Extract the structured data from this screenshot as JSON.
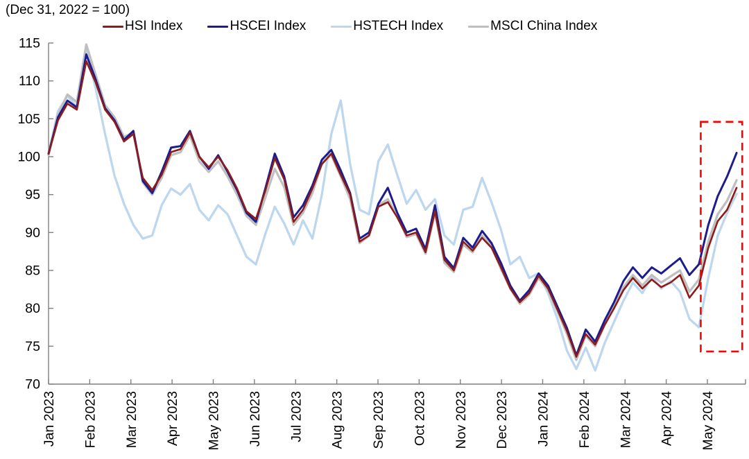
{
  "title": "(Dec 31, 2022 = 100)",
  "chart_data": {
    "type": "line",
    "title": "(Dec 31, 2022 = 100)",
    "xlabel": "",
    "ylabel": "",
    "x_unit": "weekly points from Jan 2023 to late May 2024",
    "x_tick_labels": [
      "Jan 2023",
      "Feb 2023",
      "Mar 2023",
      "Apr 2023",
      "May 2023",
      "Jun 2023",
      "Jul 2023",
      "Aug 2023",
      "Sep 2023",
      "Oct 2023",
      "Nov 2023",
      "Dec 2023",
      "Jan 2024",
      "Feb 2024",
      "Mar 2024",
      "Apr 2024",
      "May 2024"
    ],
    "ylim": [
      70,
      115
    ],
    "y_ticks": [
      70,
      75,
      80,
      85,
      90,
      95,
      100,
      105,
      110,
      115
    ],
    "grid": false,
    "legend_position": "top",
    "axis_color": "#7F7F7F",
    "text_color": "#000000",
    "series": [
      {
        "name": "HSI Index",
        "color": "#8E1B1B",
        "line_width": 2.6,
        "values": [
          100.4,
          104.8,
          107.0,
          106.2,
          112.6,
          109.8,
          106.2,
          104.6,
          102.0,
          103.0,
          97.2,
          95.6,
          97.6,
          100.6,
          101.0,
          103.2,
          100.0,
          98.6,
          100.0,
          98.2,
          95.8,
          92.8,
          91.8,
          95.5,
          99.8,
          97.0,
          91.4,
          93.0,
          95.8,
          99.0,
          100.4,
          97.6,
          95.0,
          88.8,
          89.6,
          93.4,
          94.0,
          92.0,
          89.6,
          90.0,
          87.4,
          92.8,
          86.4,
          85.0,
          88.8,
          87.6,
          89.3,
          88.0,
          85.4,
          82.6,
          80.8,
          82.0,
          84.3,
          82.6,
          79.8,
          77.0,
          73.6,
          76.6,
          75.2,
          77.8,
          80.0,
          82.4,
          84.0,
          82.6,
          83.8,
          82.8,
          83.4,
          84.4,
          81.4,
          83.0,
          88.0,
          91.5,
          93.0,
          95.9
        ]
      },
      {
        "name": "HSCEI Index",
        "color": "#1C1C8C",
        "line_width": 3.0,
        "values": [
          100.4,
          105.2,
          107.4,
          106.5,
          113.5,
          110.2,
          106.4,
          104.8,
          102.2,
          103.4,
          96.8,
          95.2,
          98.0,
          101.2,
          101.4,
          103.4,
          100.0,
          98.4,
          100.2,
          98.0,
          95.6,
          92.6,
          91.4,
          95.8,
          100.4,
          97.4,
          92.0,
          93.6,
          96.2,
          99.6,
          100.9,
          98.2,
          95.2,
          89.2,
          90.0,
          93.8,
          95.9,
          92.6,
          90.0,
          90.5,
          87.8,
          93.6,
          86.8,
          85.3,
          89.3,
          88.0,
          90.2,
          88.6,
          86.0,
          83.0,
          81.0,
          82.4,
          84.6,
          83.0,
          80.2,
          77.4,
          73.8,
          77.2,
          75.6,
          78.4,
          80.8,
          83.6,
          85.4,
          84.0,
          85.4,
          84.6,
          85.6,
          86.6,
          84.4,
          85.8,
          91.0,
          94.8,
          97.4,
          100.5
        ]
      },
      {
        "name": "HSTECH Index",
        "color": "#BDD7EE",
        "line_width": 3.3,
        "values": [
          100.4,
          106.0,
          108.0,
          106.6,
          114.0,
          109.0,
          103.0,
          97.5,
          93.8,
          91.0,
          89.2,
          89.6,
          93.6,
          95.8,
          95.0,
          96.4,
          93.0,
          91.6,
          93.6,
          92.4,
          89.6,
          86.8,
          85.8,
          89.8,
          93.4,
          91.2,
          88.4,
          91.6,
          89.2,
          95.0,
          103.0,
          107.4,
          99.0,
          93.0,
          92.4,
          99.4,
          101.6,
          97.6,
          93.8,
          95.6,
          93.0,
          94.4,
          89.6,
          88.4,
          93.0,
          93.4,
          97.2,
          94.0,
          90.4,
          85.8,
          86.8,
          84.0,
          84.6,
          82.0,
          78.6,
          74.4,
          72.0,
          74.8,
          71.8,
          75.4,
          78.2,
          81.0,
          83.4,
          82.0,
          84.2,
          82.6,
          83.6,
          82.2,
          78.6,
          77.5,
          84.0,
          89.6,
          92.6,
          95.1
        ]
      },
      {
        "name": "MSCI China Index",
        "color": "#BFBFBF",
        "line_width": 3.3,
        "values": [
          100.2,
          105.6,
          108.2,
          107.2,
          114.8,
          110.8,
          106.8,
          105.2,
          102.6,
          103.2,
          96.6,
          95.0,
          97.2,
          100.2,
          100.6,
          102.8,
          99.4,
          98.0,
          99.4,
          97.4,
          95.0,
          92.2,
          91.0,
          94.6,
          98.4,
          96.0,
          91.0,
          92.6,
          95.2,
          99.2,
          100.2,
          97.4,
          94.4,
          88.6,
          89.6,
          93.6,
          94.4,
          92.2,
          89.4,
          89.8,
          87.2,
          92.6,
          86.0,
          84.8,
          88.4,
          87.4,
          89.6,
          88.2,
          85.2,
          82.6,
          80.6,
          81.8,
          84.0,
          82.4,
          79.6,
          76.6,
          73.2,
          76.4,
          75.0,
          77.8,
          80.2,
          82.8,
          84.4,
          83.0,
          84.4,
          83.4,
          84.2,
          85.0,
          82.2,
          83.8,
          88.8,
          92.4,
          94.2,
          96.9
        ]
      }
    ],
    "annotation_box": {
      "description": "red dashed rectangle highlighting the rally from late Apr 2024 to late May 2024",
      "color": "#FF0000",
      "start_week": 69.2,
      "end_week": 73.6,
      "value_top": 104.6,
      "value_bottom": 74.3,
      "style": "dashed"
    }
  }
}
